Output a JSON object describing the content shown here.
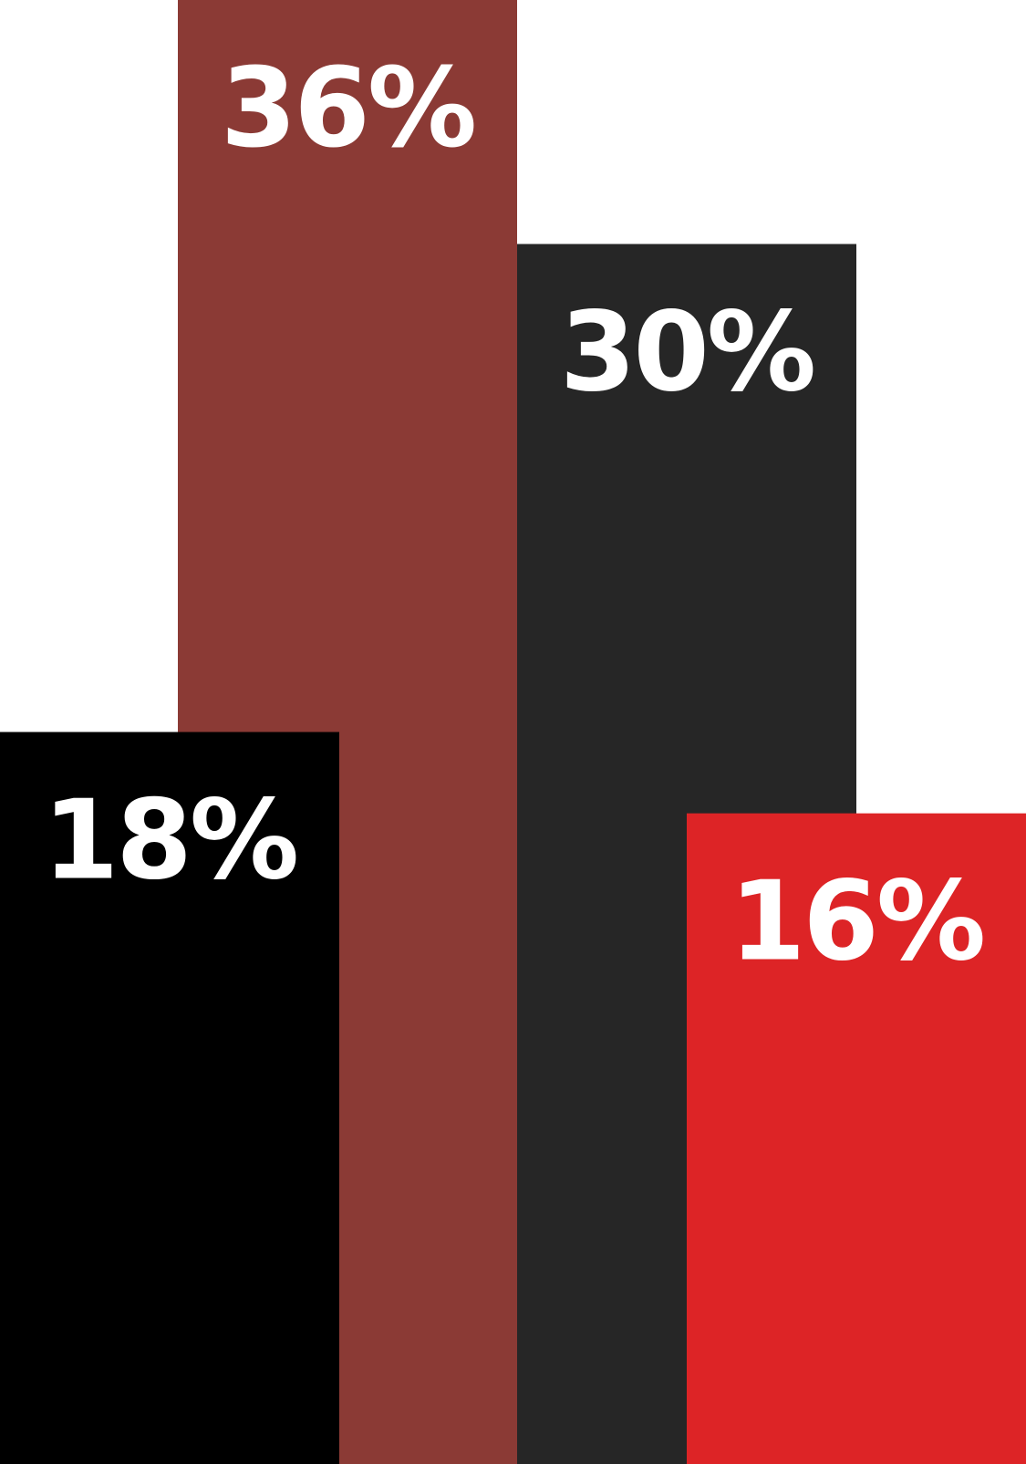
{
  "chart_data": {
    "type": "bar",
    "title": "",
    "xlabel": "",
    "ylabel": "",
    "ylim": [
      0,
      36
    ],
    "grid": false,
    "legend": "none",
    "bars": [
      {
        "value": 18,
        "label": "18%",
        "color": "#000000"
      },
      {
        "value": 36,
        "label": "36%",
        "color": "#8b3a35"
      },
      {
        "value": 30,
        "label": "30%",
        "color": "#262626"
      },
      {
        "value": 16,
        "label": "16%",
        "color": "#dd2426"
      }
    ]
  }
}
